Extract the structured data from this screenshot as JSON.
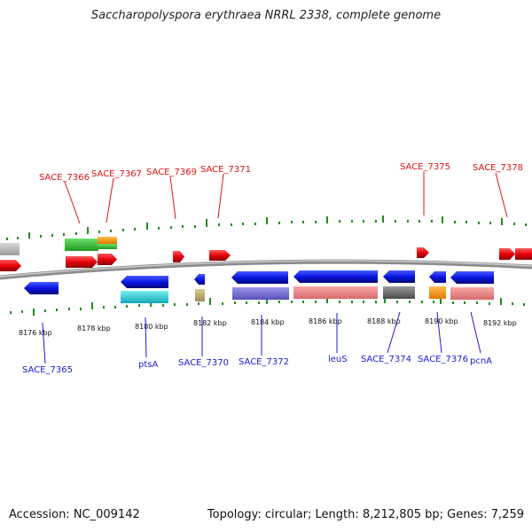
{
  "title": "Saccharopolyspora erythraea NRRL 2338, complete genome",
  "footer": {
    "accession": "Accession: NC_009142",
    "summary": "Topology: circular; Length: 8,212,805 bp; Genes: 7,259"
  },
  "scale_labels": [
    "8176 kbp",
    "8178 kbp",
    "8180 kbp",
    "8182 kbp",
    "8184 kbp",
    "8186 kbp",
    "8188 kbp",
    "8190 kbp",
    "8192 kbp"
  ],
  "genes_top": [
    "SACE_7366",
    "SACE_7367",
    "SACE_7369",
    "SACE_7371",
    "SACE_7375",
    "SACE_7378"
  ],
  "genes_bottom": [
    "SACE_7365",
    "ptsA",
    "SACE_7370",
    "SACE_7372",
    "leuS",
    "SACE_7374",
    "SACE_7376",
    "pcnA"
  ],
  "colors": {
    "forward_strand": "#e8000b",
    "reverse_strand": "#0a14e0",
    "backbone": "#8c8c8c",
    "ticks": "#1e8c1e",
    "label_forward": "#e01010",
    "label_reverse": "#1a1ad8"
  }
}
